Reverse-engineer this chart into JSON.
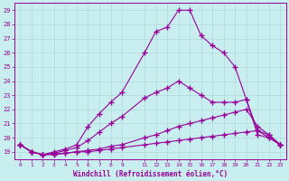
{
  "title": "",
  "xlabel": "Windchill (Refroidissement éolien,°C)",
  "bg_color": "#c8eef0",
  "line_color": "#990099",
  "grid_color": "#b0d8da",
  "ylim": [
    18.5,
    29.5
  ],
  "xlim": [
    -0.5,
    23.5
  ],
  "yticks": [
    19,
    20,
    21,
    22,
    23,
    24,
    25,
    26,
    27,
    28,
    29
  ],
  "xticks": [
    0,
    1,
    2,
    3,
    4,
    5,
    6,
    7,
    8,
    9,
    11,
    12,
    13,
    14,
    15,
    16,
    17,
    18,
    19,
    20,
    21,
    22,
    23
  ],
  "lines": [
    {
      "x": [
        0,
        1,
        2,
        3,
        4,
        5,
        6,
        7,
        8,
        9,
        11,
        12,
        13,
        14,
        15,
        16,
        17,
        18,
        19,
        20,
        21,
        22,
        23
      ],
      "y": [
        19.5,
        19.0,
        18.8,
        18.8,
        18.9,
        19.0,
        19.0,
        19.1,
        19.2,
        19.3,
        19.5,
        19.6,
        19.7,
        19.8,
        19.9,
        20.0,
        20.1,
        20.2,
        20.3,
        20.4,
        20.5,
        20.2,
        19.5
      ]
    },
    {
      "x": [
        0,
        1,
        2,
        3,
        4,
        5,
        6,
        7,
        8,
        9,
        11,
        12,
        13,
        14,
        15,
        16,
        17,
        18,
        19,
        20,
        21,
        22,
        23
      ],
      "y": [
        19.5,
        19.0,
        18.8,
        18.85,
        18.9,
        19.0,
        19.1,
        19.2,
        19.4,
        19.5,
        20.0,
        20.2,
        20.5,
        20.8,
        21.0,
        21.2,
        21.4,
        21.6,
        21.8,
        22.0,
        20.8,
        20.2,
        19.5
      ]
    },
    {
      "x": [
        0,
        1,
        2,
        3,
        4,
        5,
        6,
        7,
        8,
        9,
        11,
        12,
        13,
        14,
        15,
        16,
        17,
        18,
        19,
        20,
        21,
        22,
        23
      ],
      "y": [
        19.5,
        19.0,
        18.8,
        18.9,
        19.1,
        19.3,
        19.8,
        20.4,
        21.0,
        21.5,
        22.8,
        23.2,
        23.5,
        24.0,
        23.5,
        23.0,
        22.5,
        22.5,
        22.5,
        22.7,
        20.5,
        20.0,
        19.5
      ]
    },
    {
      "x": [
        0,
        1,
        2,
        3,
        4,
        5,
        6,
        7,
        8,
        9,
        11,
        12,
        13,
        14,
        15,
        16,
        17,
        18,
        19,
        20,
        21,
        22,
        23
      ],
      "y": [
        19.5,
        19.0,
        18.8,
        19.0,
        19.2,
        19.5,
        20.8,
        21.7,
        22.5,
        23.2,
        26.0,
        27.5,
        27.8,
        29.0,
        29.0,
        27.2,
        26.5,
        26.0,
        25.0,
        22.7,
        20.2,
        20.0,
        19.5
      ]
    }
  ]
}
